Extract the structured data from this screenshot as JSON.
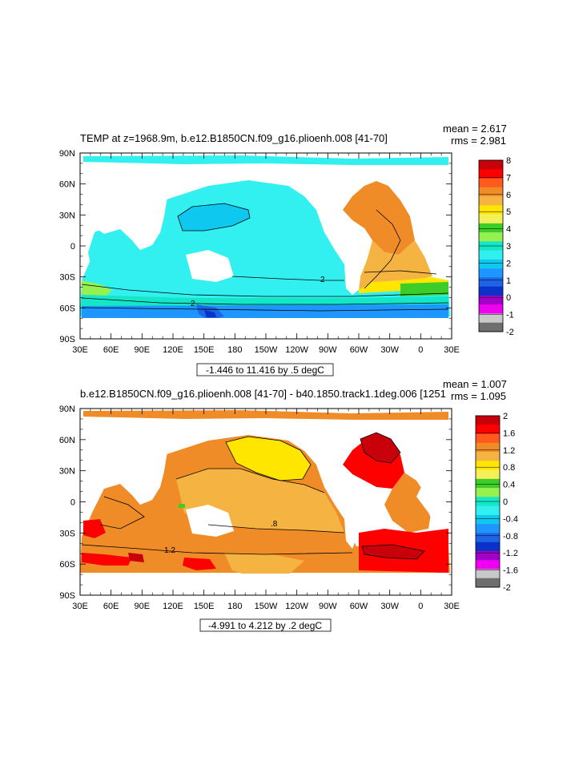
{
  "chart_data": [
    {
      "type": "heatmap",
      "title": "TEMP at z=1968.9m, b.e12.B1850CN.f09_g16.plioenh.008 [41-70]",
      "stats": [
        "mean = 2.617",
        "rms = 2.981"
      ],
      "range_note": "-1.446 to 11.416 by .5 degC",
      "x_ticks": [
        "30E",
        "60E",
        "90E",
        "120E",
        "150E",
        "180",
        "150W",
        "120W",
        "90W",
        "60W",
        "30W",
        "0",
        "30E"
      ],
      "y_ticks": [
        "90N",
        "60N",
        "30N",
        "0",
        "30S",
        "60S",
        "90S"
      ],
      "xlim": [
        30,
        390
      ],
      "ylim": [
        -90,
        90
      ],
      "contour_labels": [
        "2",
        "2"
      ],
      "colorbar": {
        "labels": [
          "8",
          "7",
          "6",
          "5",
          "4",
          "3",
          "2",
          "1",
          "0",
          "-1",
          "-2"
        ],
        "colors": [
          "#c8000a",
          "#ff0000",
          "#ff5a1e",
          "#f08c28",
          "#f5b441",
          "#ffe600",
          "#f5f05a",
          "#3ccd28",
          "#96f050",
          "#14e6c8",
          "#32f0f0",
          "#0fc8f0",
          "#1e96ff",
          "#1e64e6",
          "#0a32c8",
          "#a000c8",
          "#f000f0",
          "#c8c8c8",
          "#6e6e6e"
        ]
      },
      "legend_placement": "right"
    },
    {
      "type": "heatmap",
      "title": "b.e12.B1850CN.f09_g16.plioenh.008 [41-70] - b40.1850.track1.1deg.006 [1251",
      "stats": [
        "mean = 1.007",
        "rms = 1.095"
      ],
      "range_note": "-4.991 to 4.212 by .2 degC",
      "x_ticks": [
        "30E",
        "60E",
        "90E",
        "120E",
        "150E",
        "180",
        "150W",
        "120W",
        "90W",
        "60W",
        "30W",
        "0",
        "30E"
      ],
      "y_ticks": [
        "90N",
        "60N",
        "30N",
        "0",
        "30S",
        "60S",
        "90S"
      ],
      "xlim": [
        30,
        390
      ],
      "ylim": [
        -90,
        90
      ],
      "contour_labels": [
        "1.2",
        ".8"
      ],
      "colorbar": {
        "labels": [
          "2",
          "1.6",
          "1.2",
          "0.8",
          "0.4",
          "0",
          "-0.4",
          "-0.8",
          "-1.2",
          "-1.6",
          "-2"
        ],
        "colors": [
          "#c8000a",
          "#ff0000",
          "#ff5a1e",
          "#f08c28",
          "#f5b441",
          "#ffe600",
          "#f5f05a",
          "#3ccd28",
          "#96f050",
          "#14e6c8",
          "#32f0f0",
          "#0fc8f0",
          "#1e96ff",
          "#1e64e6",
          "#0a32c8",
          "#a000c8",
          "#f000f0",
          "#c8c8c8",
          "#6e6e6e"
        ]
      },
      "legend_placement": "right"
    }
  ]
}
